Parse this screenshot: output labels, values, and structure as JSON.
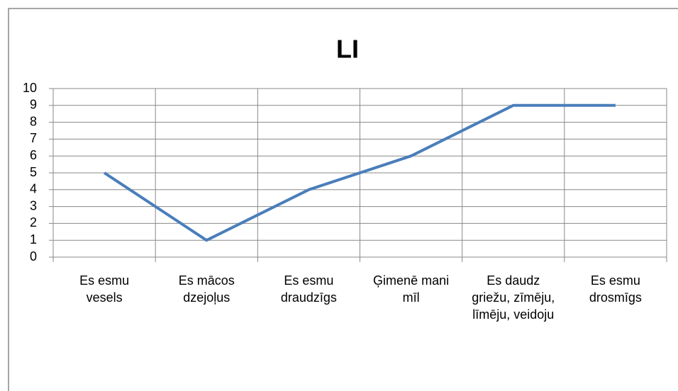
{
  "chart_data": {
    "type": "line",
    "title": "LI",
    "categories": [
      "Es esmu vesels",
      "Es mācos dzejoļus",
      "Es esmu draudzīgs",
      "Ģimenē mani mīl",
      "Es daudz griežu, zīmēju, līmēju, veidoju",
      "Es esmu drosmīgs"
    ],
    "series": [
      {
        "name": "LI",
        "color": "#4a7ebb",
        "values": [
          5,
          1,
          4,
          6,
          9,
          9
        ]
      }
    ],
    "ylim": [
      0,
      10
    ],
    "yticks": [
      0,
      1,
      2,
      3,
      4,
      5,
      6,
      7,
      8,
      9,
      10
    ],
    "grid": true
  }
}
